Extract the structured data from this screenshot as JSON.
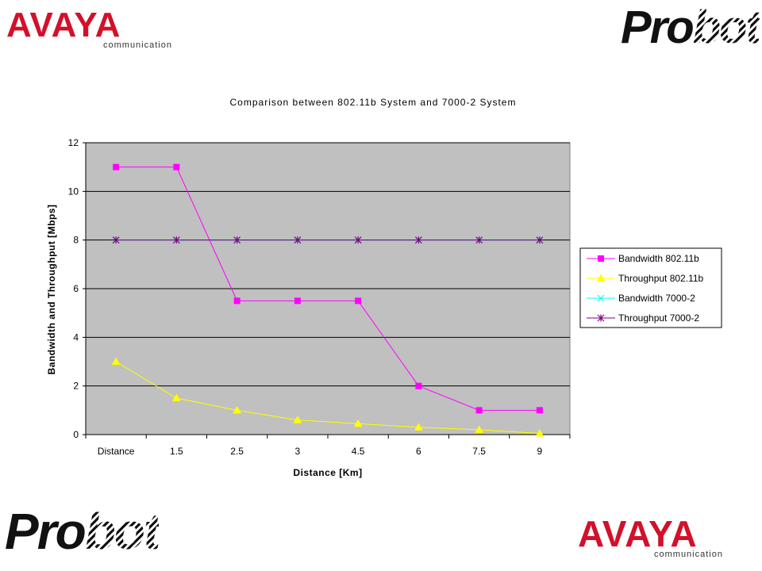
{
  "logos": {
    "avaya_word": "AVAYA",
    "avaya_sub": "communication",
    "probot_pro": "Pro",
    "probot_bot": "bot"
  },
  "colors": {
    "plot_bg": "#c0c0c0",
    "bandwidth_802": "#ff00ff",
    "throughput_802": "#ffff00",
    "bandwidth_7000": "#00ffff",
    "throughput_7000": "#800080",
    "brand_red": "#d3102a"
  },
  "chart_data": {
    "type": "line",
    "title": "Comparison between 802.11b System and 7000-2 System",
    "xlabel": "Distance [Km]",
    "ylabel": "Bandwidth and Throughput [Mbps]",
    "categories": [
      "Distance",
      "1.5",
      "2.5",
      "3",
      "4.5",
      "6",
      "7.5",
      "9"
    ],
    "ylim": [
      0,
      12
    ],
    "yticks": [
      0,
      2,
      4,
      6,
      8,
      10,
      12
    ],
    "grid": true,
    "legend_position": "right",
    "series": [
      {
        "name": "Bandwidth 802.11b",
        "marker": "square",
        "color": "#ff00ff",
        "values": [
          11,
          11,
          5.5,
          5.5,
          5.5,
          2,
          1,
          1
        ]
      },
      {
        "name": "Throughput 802.11b",
        "marker": "triangle",
        "color": "#ffff00",
        "values": [
          3,
          1.5,
          1,
          0.6,
          0.45,
          0.3,
          0.2,
          0.05
        ]
      },
      {
        "name": "Bandwidth 7000-2",
        "marker": "x",
        "color": "#00ffff",
        "values": [
          8,
          8,
          8,
          8,
          8,
          8,
          8,
          8
        ]
      },
      {
        "name": "Throughput 7000-2",
        "marker": "star",
        "color": "#800080",
        "values": [
          8,
          8,
          8,
          8,
          8,
          8,
          8,
          8
        ]
      }
    ]
  }
}
